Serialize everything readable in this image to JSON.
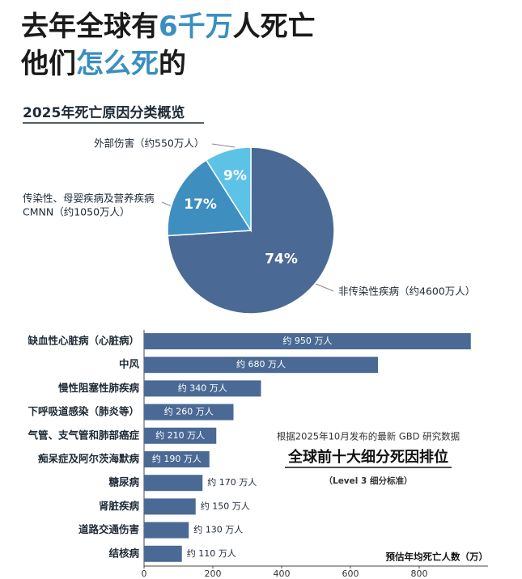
{
  "header": {
    "line1": [
      "去年全球有",
      "6千万",
      "人死亡"
    ],
    "line2": [
      "他们",
      "怎么死",
      "的"
    ]
  },
  "chart_data": [
    {
      "type": "pie",
      "title": "2025年死亡原因分类概览",
      "categories": [
        [
          "非传染性疾病（约4600万人）"
        ],
        [
          "传染性、母婴疾病及营养疾病",
          "CMNN（约1050万人）"
        ],
        [
          "外部伤害（约550万人）"
        ]
      ],
      "values": [
        74,
        17,
        9
      ],
      "value_labels": [
        "74%",
        "17%",
        "9%"
      ],
      "colors": [
        "#4a6a95",
        "#3e8fbf",
        "#5cc3e6"
      ]
    },
    {
      "type": "hbar",
      "categories": [
        "缺血性心脏病（心脏病）",
        "中风",
        "慢性阻塞性肺疾病",
        "下呼吸道感染（肺炎等）",
        "气管、支气管和肺部癌症",
        "痴呆症及阿尔茨海默病",
        "糖尿病",
        "肾脏疾病",
        "道路交通伤害",
        "结核病"
      ],
      "values": [
        950,
        680,
        340,
        260,
        210,
        190,
        170,
        150,
        130,
        110
      ],
      "value_labels": [
        "约 950 万人",
        "约 680 万人",
        "约 340 万人",
        "约 260 万人",
        "约 210 万人",
        "约 190 万人",
        "约 170 万人",
        "约 150 万人",
        "约 130 万人",
        "约 110 万人"
      ],
      "color": "#4a6a95",
      "xlim": [
        0,
        1000
      ],
      "xticks": [
        0,
        200,
        400,
        600,
        800
      ],
      "xlabel": "预估年均死亡人数（万）",
      "annotations": [
        "根据2025年10月发布的最新 GBD 研究数据",
        "全球前十大细分死因排位",
        "（Level 3 细分标准）"
      ]
    }
  ]
}
